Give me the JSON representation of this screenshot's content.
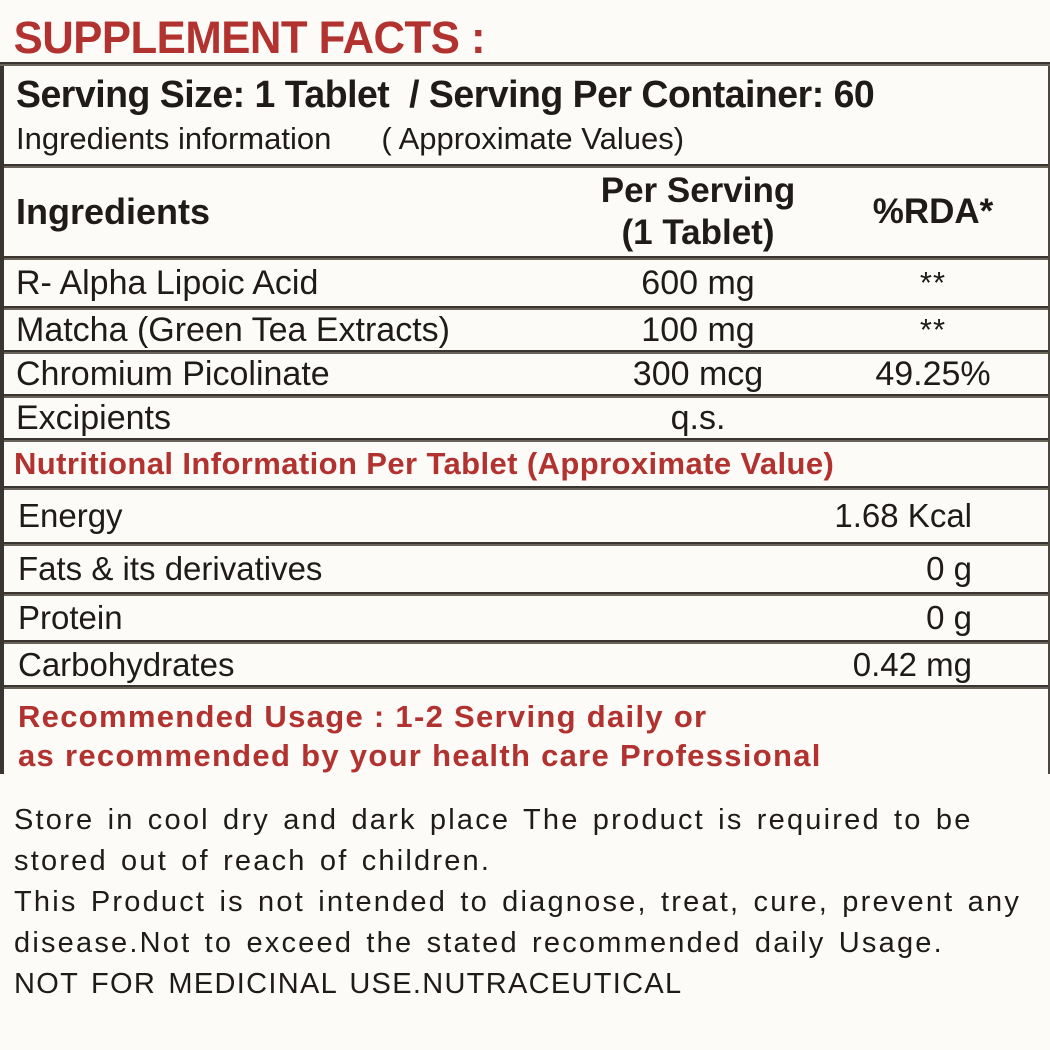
{
  "colors": {
    "accent_red": "#b23230",
    "text_black": "#1e1b19",
    "rule_dark": "#3a3530",
    "rule_gray": "#696359",
    "background": "#fcfbf8"
  },
  "header": {
    "title": "SUPPLEMENT FACTS :"
  },
  "serving": {
    "line": "Serving Size: 1 Tablet  / Serving Per Container: 60",
    "info_left": "Ingredients information",
    "info_right": "( Approximate Values)"
  },
  "table": {
    "col_ingredients": "Ingredients",
    "col_per_serving_line1": "Per Serving",
    "col_per_serving_line2": "(1 Tablet)",
    "col_rda": "%RDA*",
    "rows": [
      {
        "name": "R- Alpha Lipoic Acid",
        "amount": "600 mg",
        "rda": "**"
      },
      {
        "name": "Matcha (Green Tea Extracts)",
        "amount": "100 mg",
        "rda": "**"
      },
      {
        "name": "Chromium Picolinate",
        "amount": "300 mcg",
        "rda": "49.25%"
      },
      {
        "name": "Excipients",
        "amount": "q.s.",
        "rda": ""
      }
    ]
  },
  "nutrition": {
    "title": "Nutritional Information Per Tablet (Approximate Value)",
    "rows": [
      {
        "name": "Energy",
        "value": "1.68 Kcal"
      },
      {
        "name": "Fats & its derivatives",
        "value": "0 g"
      },
      {
        "name": "Protein",
        "value": "0 g"
      },
      {
        "name": "Carbohydrates",
        "value": "0.42 mg"
      }
    ]
  },
  "usage": {
    "line1": "Recommended Usage : 1-2 Serving daily or",
    "line2": "as recommended by your health care Professional"
  },
  "footer": {
    "storage_line1": "Store in cool dry and dark place The product is required to be",
    "storage_line2": "stored out of reach of children.",
    "disclaimer_line1": "This Product is not intended to diagnose, treat, cure, prevent any",
    "disclaimer_line2": "disease.Not to exceed the stated recommended daily Usage.",
    "notice": "NOT FOR MEDICINAL USE.NUTRACEUTICAL"
  }
}
